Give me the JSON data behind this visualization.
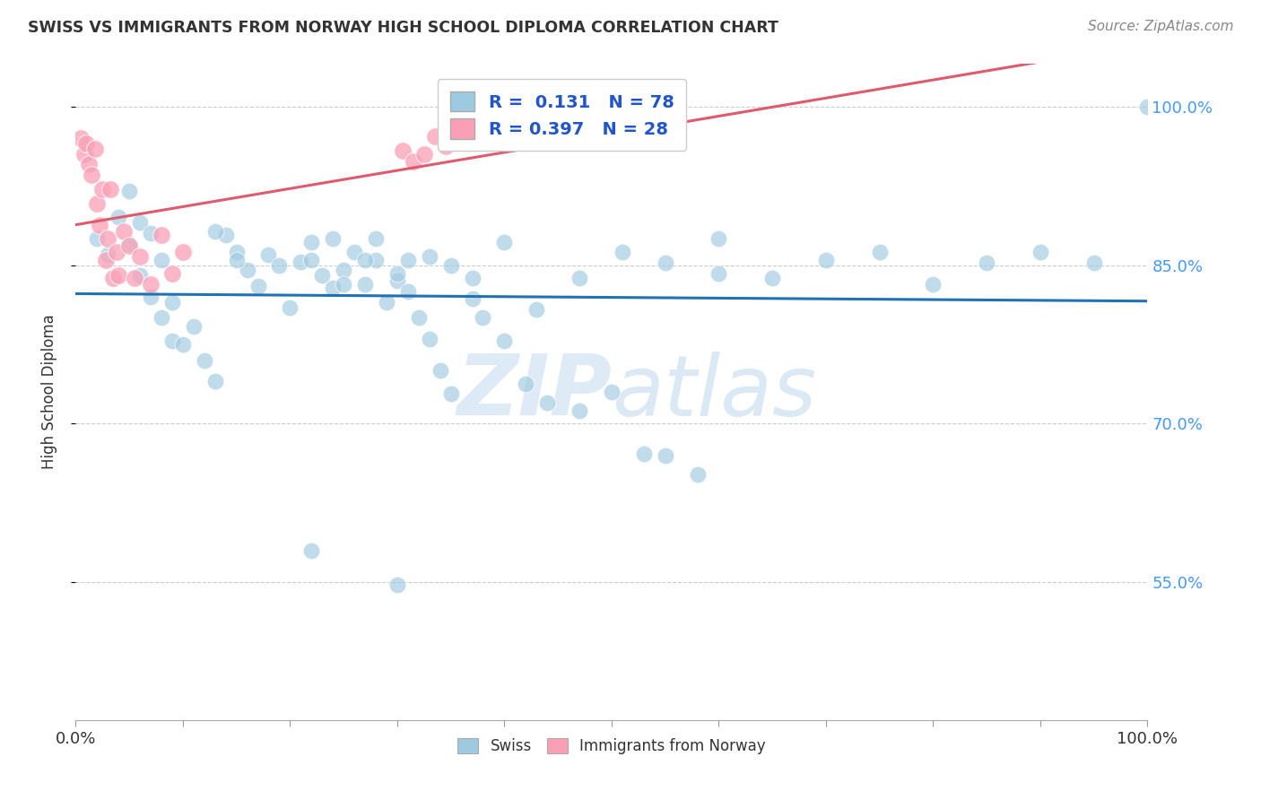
{
  "title": "SWISS VS IMMIGRANTS FROM NORWAY HIGH SCHOOL DIPLOMA CORRELATION CHART",
  "source": "Source: ZipAtlas.com",
  "ylabel": "High School Diploma",
  "legend_swiss": "Swiss",
  "legend_norway": "Immigrants from Norway",
  "r_swiss": "0.131",
  "n_swiss": "78",
  "r_norway": "0.397",
  "n_norway": "28",
  "swiss_color": "#9ecae1",
  "norway_color": "#fa9fb5",
  "trend_swiss_color": "#2171b5",
  "trend_norway_color": "#e05a6e",
  "watermark_zip": "ZIP",
  "watermark_atlas": "atlas",
  "background_color": "#ffffff",
  "grid_color": "#cccccc",
  "xlim": [
    0.0,
    1.0
  ],
  "ylim": [
    0.42,
    1.04
  ],
  "yticks": [
    0.55,
    0.7,
    0.85,
    1.0
  ],
  "xticks": [
    0.0,
    0.1,
    0.2,
    0.3,
    0.4,
    0.5,
    0.6,
    0.7,
    0.8,
    0.9,
    1.0
  ],
  "swiss_x": [
    0.02,
    0.03,
    0.04,
    0.05,
    0.05,
    0.06,
    0.06,
    0.07,
    0.07,
    0.08,
    0.08,
    0.09,
    0.09,
    0.1,
    0.11,
    0.12,
    0.13,
    0.14,
    0.15,
    0.16,
    0.17,
    0.18,
    0.19,
    0.2,
    0.21,
    0.22,
    0.23,
    0.24,
    0.25,
    0.26,
    0.27,
    0.28,
    0.29,
    0.3,
    0.31,
    0.32,
    0.33,
    0.34,
    0.35,
    0.37,
    0.38,
    0.4,
    0.42,
    0.44,
    0.47,
    0.5,
    0.53,
    0.55,
    0.58,
    0.6,
    0.13,
    0.15,
    0.22,
    0.24,
    0.25,
    0.27,
    0.28,
    0.3,
    0.31,
    0.33,
    0.35,
    0.37,
    0.4,
    0.43,
    0.47,
    0.51,
    0.55,
    0.6,
    0.65,
    0.7,
    0.75,
    0.8,
    0.85,
    0.9,
    0.95,
    1.0,
    0.22,
    0.3
  ],
  "swiss_y": [
    0.875,
    0.86,
    0.895,
    0.87,
    0.92,
    0.84,
    0.89,
    0.82,
    0.88,
    0.8,
    0.855,
    0.778,
    0.815,
    0.775,
    0.792,
    0.76,
    0.74,
    0.878,
    0.862,
    0.845,
    0.83,
    0.86,
    0.85,
    0.81,
    0.853,
    0.872,
    0.84,
    0.828,
    0.845,
    0.862,
    0.832,
    0.855,
    0.815,
    0.835,
    0.855,
    0.8,
    0.78,
    0.75,
    0.728,
    0.818,
    0.8,
    0.778,
    0.738,
    0.72,
    0.712,
    0.73,
    0.672,
    0.67,
    0.652,
    0.842,
    0.882,
    0.855,
    0.855,
    0.875,
    0.832,
    0.855,
    0.875,
    0.842,
    0.825,
    0.858,
    0.85,
    0.838,
    0.872,
    0.808,
    0.838,
    0.862,
    0.852,
    0.875,
    0.838,
    0.855,
    0.862,
    0.832,
    0.852,
    0.862,
    0.852,
    1.0,
    0.58,
    0.548
  ],
  "norway_x": [
    0.005,
    0.008,
    0.01,
    0.012,
    0.015,
    0.018,
    0.02,
    0.022,
    0.025,
    0.028,
    0.03,
    0.032,
    0.035,
    0.038,
    0.04,
    0.045,
    0.05,
    0.055,
    0.06,
    0.07,
    0.08,
    0.09,
    0.1,
    0.305,
    0.315,
    0.325,
    0.335,
    0.345
  ],
  "norway_y": [
    0.97,
    0.955,
    0.965,
    0.945,
    0.935,
    0.96,
    0.908,
    0.888,
    0.922,
    0.855,
    0.875,
    0.922,
    0.838,
    0.862,
    0.84,
    0.882,
    0.868,
    0.838,
    0.858,
    0.832,
    0.878,
    0.842,
    0.862,
    0.958,
    0.948,
    0.955,
    0.972,
    0.962
  ]
}
